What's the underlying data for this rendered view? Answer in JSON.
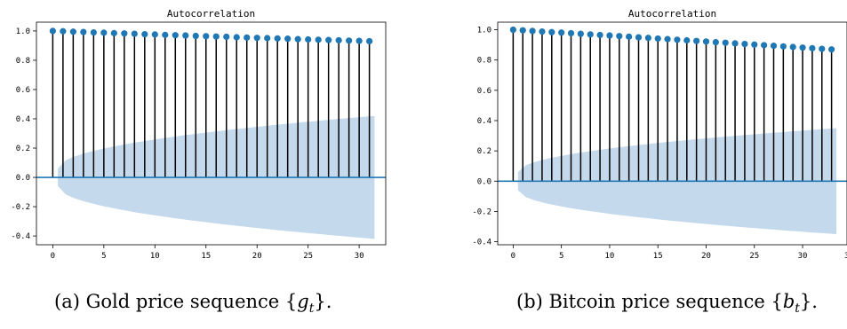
{
  "chart_data": [
    {
      "type": "stem",
      "title": "Autocorrelation",
      "xlabel": "",
      "ylabel": "",
      "xlim": [
        -1.6,
        32.6
      ],
      "ylim": [
        -0.46,
        1.06
      ],
      "xticks": [
        0,
        5,
        10,
        15,
        20,
        25,
        30
      ],
      "yticks": [
        -0.4,
        -0.2,
        0.0,
        0.2,
        0.4,
        0.6,
        0.8,
        1.0
      ],
      "ytick_labels": [
        "-0.4",
        "-0.2",
        "0.0",
        "0.2",
        "0.4",
        "0.6",
        "0.8",
        "1.0"
      ],
      "lags": [
        0,
        1,
        2,
        3,
        4,
        5,
        6,
        7,
        8,
        9,
        10,
        11,
        12,
        13,
        14,
        15,
        16,
        17,
        18,
        19,
        20,
        21,
        22,
        23,
        24,
        25,
        26,
        27,
        28,
        29,
        30,
        31
      ],
      "acf": [
        1.0,
        0.998,
        0.995,
        0.993,
        0.99,
        0.988,
        0.985,
        0.983,
        0.981,
        0.978,
        0.976,
        0.973,
        0.971,
        0.969,
        0.966,
        0.964,
        0.962,
        0.96,
        0.957,
        0.955,
        0.953,
        0.951,
        0.949,
        0.947,
        0.944,
        0.942,
        0.94,
        0.938,
        0.936,
        0.934,
        0.932,
        0.93
      ],
      "confidence_band": {
        "start_lag": 0.5,
        "start": 0.06,
        "end_lag": 31.5,
        "end": 0.42
      },
      "colors": {
        "marker": "#1f77b4",
        "stem": "#000000",
        "band": "#c4d9ec",
        "baseline": "#1f77b4"
      }
    },
    {
      "type": "stem",
      "title": "Autocorrelation",
      "xlabel": "",
      "ylabel": "",
      "xlim": [
        -1.6,
        34.6
      ],
      "ylim": [
        -0.42,
        1.05
      ],
      "xticks": [
        0,
        5,
        10,
        15,
        20,
        25,
        30
      ],
      "xtick_labels_extra": "3",
      "yticks": [
        -0.4,
        -0.2,
        0.0,
        0.2,
        0.4,
        0.6,
        0.8,
        1.0
      ],
      "ytick_labels": [
        "-0.4",
        "-0.2",
        "0.0",
        "0.2",
        "0.4",
        "0.6",
        "0.8",
        "1.0"
      ],
      "lags": [
        0,
        1,
        2,
        3,
        4,
        5,
        6,
        7,
        8,
        9,
        10,
        11,
        12,
        13,
        14,
        15,
        16,
        17,
        18,
        19,
        20,
        21,
        22,
        23,
        24,
        25,
        26,
        27,
        28,
        29,
        30,
        31,
        32,
        33
      ],
      "acf": [
        1.0,
        0.996,
        0.992,
        0.988,
        0.984,
        0.981,
        0.977,
        0.973,
        0.969,
        0.965,
        0.962,
        0.958,
        0.954,
        0.95,
        0.946,
        0.942,
        0.938,
        0.934,
        0.93,
        0.926,
        0.922,
        0.918,
        0.914,
        0.91,
        0.906,
        0.902,
        0.898,
        0.894,
        0.89,
        0.886,
        0.882,
        0.878,
        0.874,
        0.87
      ],
      "confidence_band": {
        "start_lag": 0.5,
        "start": 0.06,
        "end_lag": 33.5,
        "end": 0.35
      },
      "colors": {
        "marker": "#1f77b4",
        "stem": "#000000",
        "band": "#c4d9ec",
        "baseline": "#1f77b4"
      }
    }
  ],
  "captions": {
    "a": {
      "prefix": "(a)  Gold price sequence {",
      "var": "g",
      "sub": "t",
      "suffix": "}."
    },
    "b": {
      "prefix": "(b)  Bitcoin price sequence {",
      "var": "b",
      "sub": "t",
      "suffix": "}."
    }
  }
}
